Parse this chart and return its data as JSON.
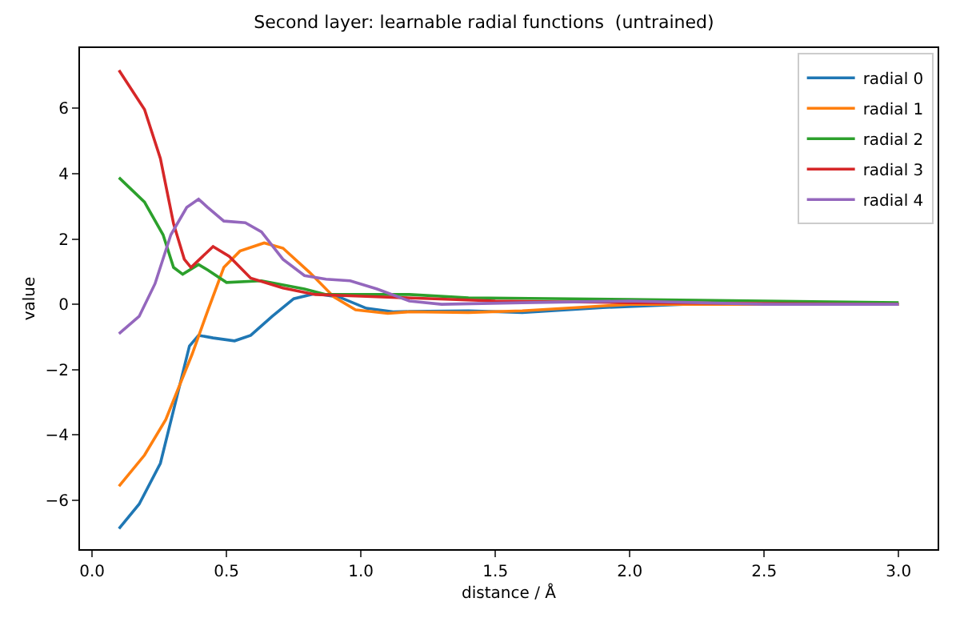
{
  "chart_data": {
    "type": "line",
    "title": "Second layer: learnable radial functions  (untrained)",
    "xlabel": "distance / Å",
    "ylabel": "value",
    "xlim": [
      -0.045,
      3.145
    ],
    "ylim": [
      -7.5,
      7.85
    ],
    "xticks": [
      {
        "value": 0,
        "label": "0.0"
      },
      0.5,
      {
        "value": 1,
        "label": "1.0"
      },
      1.5,
      {
        "value": 2,
        "label": "2.0"
      },
      2.5,
      {
        "value": 3,
        "label": "3.0"
      }
    ],
    "yticks": [
      -6,
      -4,
      -2,
      0,
      2,
      4,
      6
    ],
    "legend": "top right",
    "series": [
      {
        "name": "radial 0",
        "color": "#1f77b4",
        "x": [
          0.1,
          0.175,
          0.254,
          0.362,
          0.396,
          0.45,
          0.53,
          0.59,
          0.67,
          0.75,
          0.83,
          0.92,
          1.02,
          1.12,
          1.18,
          1.4,
          1.6,
          1.9,
          2.2,
          3.0
        ],
        "values": [
          -6.87,
          -6.12,
          -4.87,
          -1.28,
          -0.95,
          -1.03,
          -1.12,
          -0.95,
          -0.37,
          0.17,
          0.33,
          0.22,
          -0.12,
          -0.23,
          -0.22,
          -0.2,
          -0.25,
          -0.1,
          0,
          0
        ]
      },
      {
        "name": "radial 1",
        "color": "#ff7f0e",
        "x": [
          0.1,
          0.195,
          0.274,
          0.372,
          0.43,
          0.49,
          0.55,
          0.64,
          0.71,
          0.81,
          0.9,
          0.98,
          1.1,
          1.18,
          1.4,
          1.6,
          1.8,
          2.0,
          3.0
        ],
        "values": [
          -5.57,
          -4.62,
          -3.53,
          -1.53,
          -0.2,
          1.13,
          1.63,
          1.88,
          1.72,
          0.97,
          0.22,
          -0.17,
          -0.28,
          -0.23,
          -0.25,
          -0.2,
          -0.1,
          0,
          0
        ]
      },
      {
        "name": "radial 2",
        "color": "#2ca02c",
        "x": [
          0.1,
          0.195,
          0.264,
          0.303,
          0.337,
          0.396,
          0.43,
          0.5,
          0.63,
          0.79,
          0.87,
          1.18,
          1.4,
          2.0,
          3.0
        ],
        "values": [
          3.88,
          3.13,
          2.13,
          1.13,
          0.92,
          1.22,
          1.05,
          0.67,
          0.72,
          0.47,
          0.3,
          0.3,
          0.2,
          0.15,
          0.05
        ]
      },
      {
        "name": "radial 3",
        "color": "#d62728",
        "x": [
          0.1,
          0.195,
          0.254,
          0.303,
          0.343,
          0.368,
          0.4,
          0.45,
          0.51,
          0.59,
          0.71,
          0.83,
          1.0,
          1.5,
          2.0,
          3.0
        ],
        "values": [
          7.17,
          5.97,
          4.47,
          2.47,
          1.38,
          1.13,
          1.38,
          1.77,
          1.47,
          0.8,
          0.5,
          0.3,
          0.25,
          0.1,
          0.05,
          0
        ]
      },
      {
        "name": "radial 4",
        "color": "#9467bd",
        "x": [
          0.1,
          0.175,
          0.234,
          0.293,
          0.352,
          0.396,
          0.43,
          0.49,
          0.57,
          0.63,
          0.71,
          0.79,
          0.87,
          0.96,
          1.06,
          1.18,
          1.3,
          1.6,
          2.0,
          2.5,
          3.0
        ],
        "values": [
          -0.9,
          -0.37,
          0.63,
          2.13,
          2.97,
          3.22,
          2.97,
          2.55,
          2.5,
          2.22,
          1.38,
          0.88,
          0.77,
          0.72,
          0.47,
          0.1,
          0,
          0.05,
          0.1,
          0,
          0
        ]
      }
    ]
  }
}
